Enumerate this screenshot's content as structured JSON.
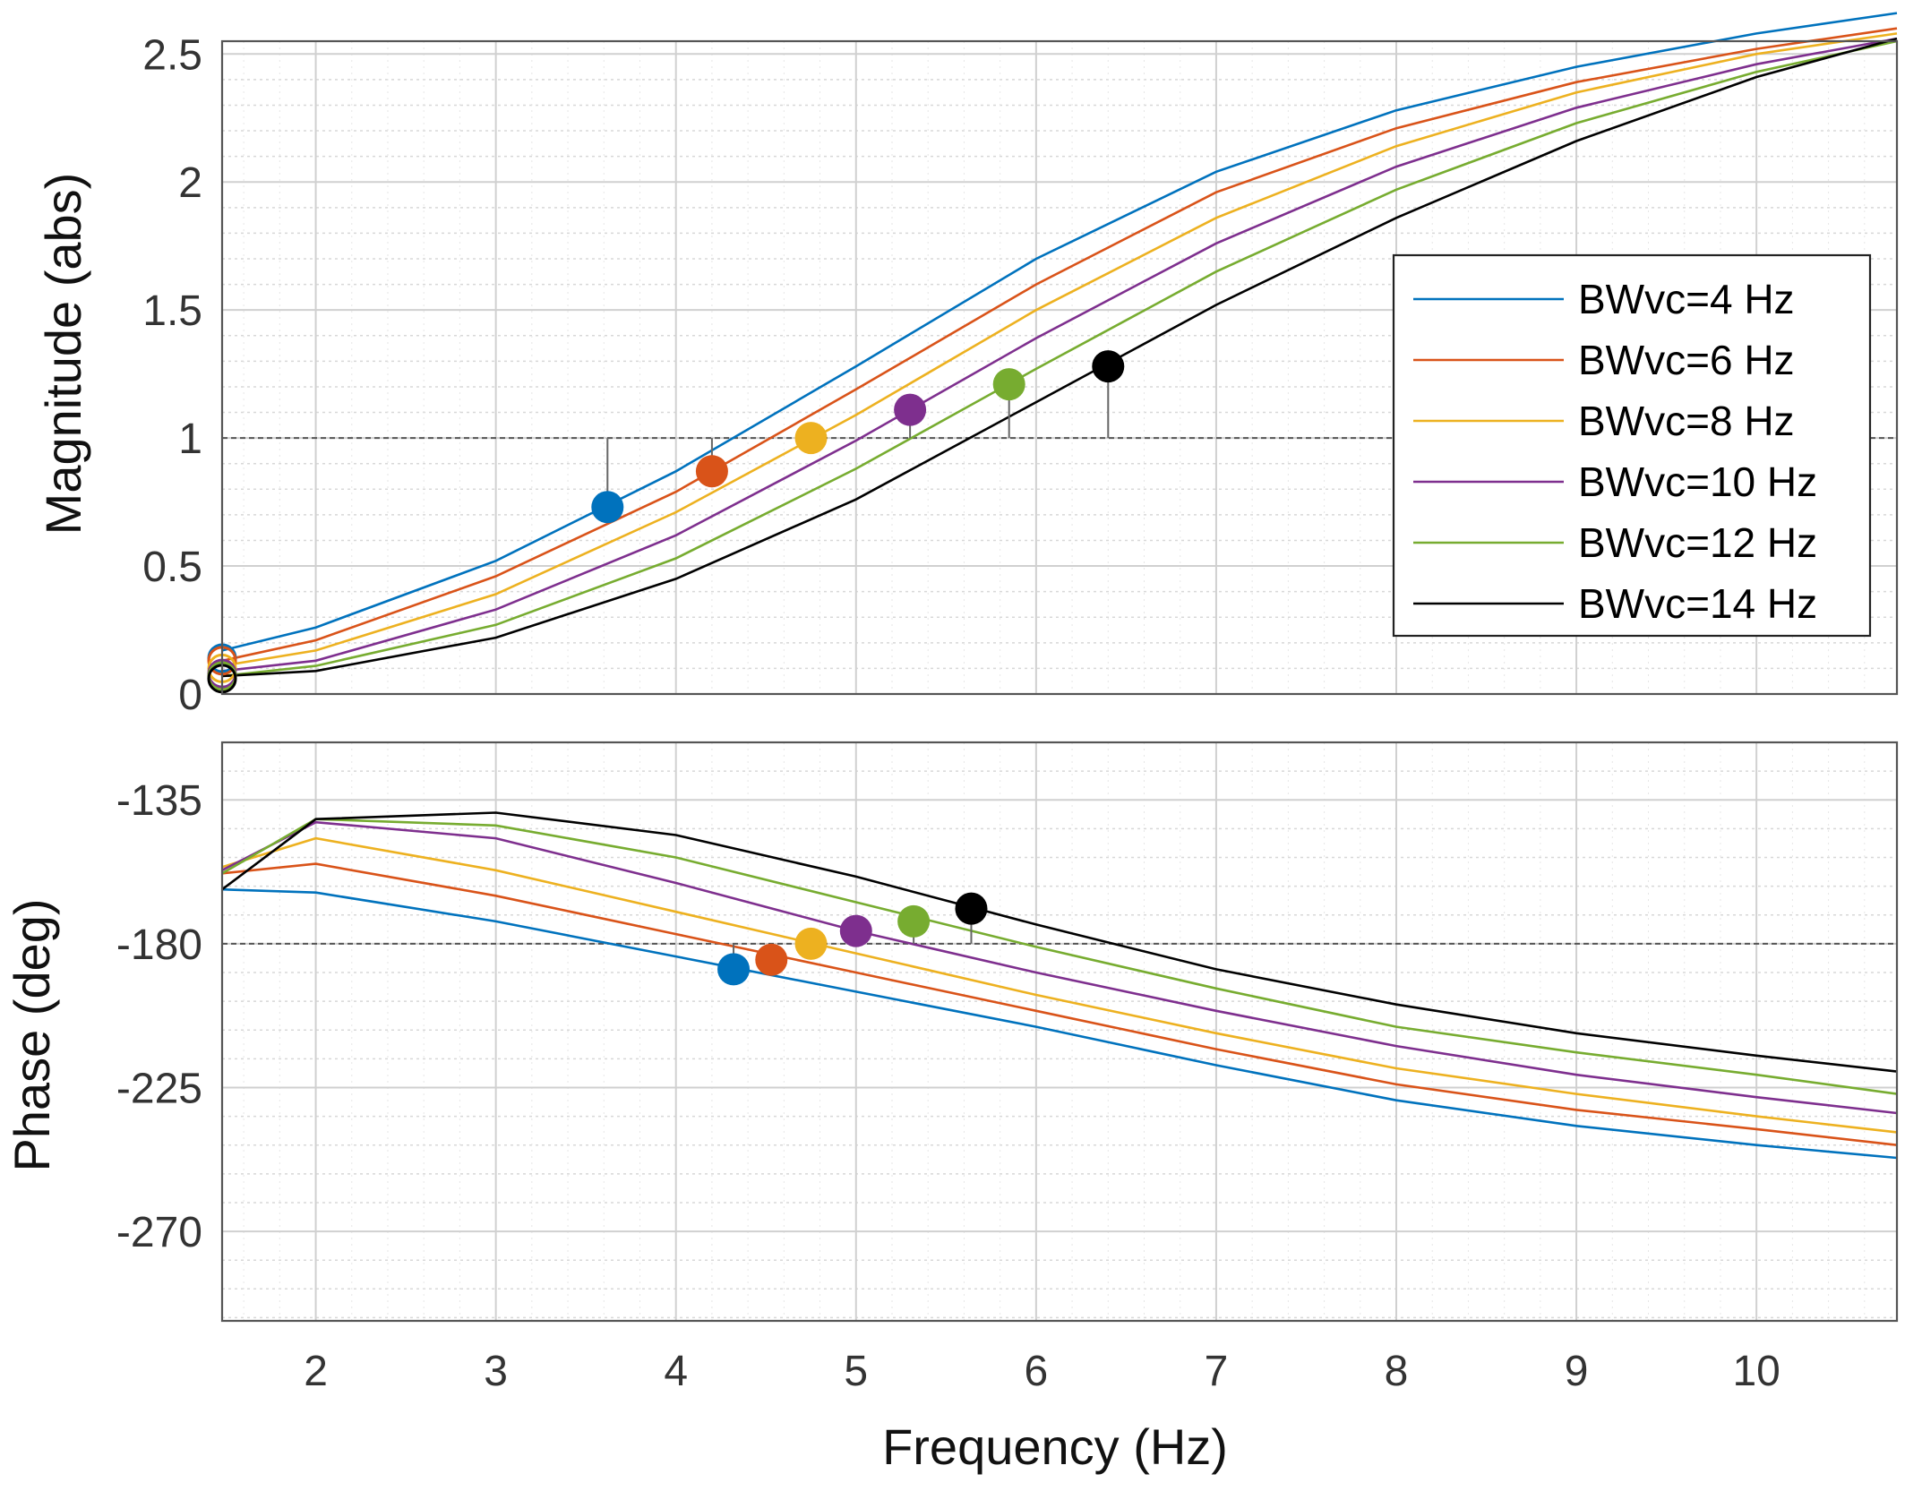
{
  "chart_data": [
    {
      "type": "line",
      "title": "",
      "xlabel": "",
      "ylabel": "Magnitude (abs)",
      "xlim": [
        1.48,
        10.78
      ],
      "ylim": [
        0,
        2.55
      ],
      "xticks": [
        2,
        3,
        4,
        5,
        6,
        7,
        8,
        9,
        10
      ],
      "yticks": [
        0,
        0.5,
        1,
        1.5,
        2,
        2.5
      ],
      "ytick_labels": [
        "0",
        "0.5",
        "1",
        "1.5",
        "2",
        "2.5"
      ],
      "grid": true,
      "reference_line": 1,
      "legend_position": "right",
      "series": [
        {
          "name": "BWvc=4  Hz",
          "color": "#0072BD",
          "x": [
            1.48,
            2,
            3,
            4,
            5,
            6,
            7,
            8,
            9,
            10,
            10.78
          ],
          "y": [
            0.17,
            0.26,
            0.52,
            0.87,
            1.28,
            1.7,
            2.04,
            2.28,
            2.45,
            2.58,
            2.66
          ],
          "marker": {
            "x": 3.62,
            "y": 0.73
          },
          "start_marker": {
            "x": 1.48,
            "y": 0.14
          }
        },
        {
          "name": "BWvc=6  Hz",
          "color": "#D95319",
          "x": [
            1.48,
            2,
            3,
            4,
            5,
            6,
            7,
            8,
            9,
            10,
            10.78
          ],
          "y": [
            0.13,
            0.21,
            0.46,
            0.79,
            1.19,
            1.6,
            1.96,
            2.21,
            2.39,
            2.52,
            2.6
          ],
          "marker": {
            "x": 4.2,
            "y": 0.87
          },
          "start_marker": {
            "x": 1.48,
            "y": 0.13
          }
        },
        {
          "name": "BWvc=8 Hz",
          "color": "#EDB120",
          "x": [
            1.48,
            2,
            3,
            4,
            5,
            6,
            7,
            8,
            9,
            10,
            10.78
          ],
          "y": [
            0.11,
            0.17,
            0.39,
            0.71,
            1.09,
            1.5,
            1.86,
            2.14,
            2.35,
            2.5,
            2.58
          ],
          "marker": {
            "x": 4.75,
            "y": 1.0
          },
          "start_marker": {
            "x": 1.48,
            "y": 0.1
          }
        },
        {
          "name": "BWvc=10 Hz",
          "color": "#7E2F8E",
          "x": [
            1.48,
            2,
            3,
            4,
            5,
            6,
            7,
            8,
            9,
            10,
            10.78
          ],
          "y": [
            0.09,
            0.13,
            0.33,
            0.62,
            0.99,
            1.39,
            1.76,
            2.06,
            2.29,
            2.46,
            2.56
          ],
          "marker": {
            "x": 5.3,
            "y": 1.11
          },
          "start_marker": {
            "x": 1.48,
            "y": 0.08
          }
        },
        {
          "name": "BWvc=12 Hz",
          "color": "#77AC30",
          "x": [
            1.48,
            2,
            3,
            4,
            5,
            6,
            7,
            8,
            9,
            10,
            10.78
          ],
          "y": [
            0.07,
            0.11,
            0.27,
            0.53,
            0.88,
            1.27,
            1.65,
            1.97,
            2.23,
            2.43,
            2.55
          ],
          "marker": {
            "x": 5.85,
            "y": 1.21
          },
          "start_marker": {
            "x": 1.48,
            "y": 0.07
          }
        },
        {
          "name": "BWvc=14 Hz",
          "color": "#000000",
          "x": [
            1.48,
            2,
            3,
            4,
            5,
            6,
            7,
            8,
            9,
            10,
            10.78
          ],
          "y": [
            0.07,
            0.09,
            0.22,
            0.45,
            0.76,
            1.14,
            1.52,
            1.86,
            2.16,
            2.41,
            2.56
          ],
          "marker": {
            "x": 6.4,
            "y": 1.28
          },
          "start_marker": {
            "x": 1.48,
            "y": 0.06
          }
        }
      ]
    },
    {
      "type": "line",
      "title": "",
      "xlabel": "Frequency  (Hz)",
      "ylabel": "Phase (deg)",
      "xlim": [
        1.48,
        10.78
      ],
      "ylim": [
        -298,
        -117
      ],
      "xticks": [
        2,
        3,
        4,
        5,
        6,
        7,
        8,
        9,
        10
      ],
      "xtick_labels": [
        "2",
        "3",
        "4",
        "5",
        "6",
        "7",
        "8",
        "9",
        "10"
      ],
      "yticks": [
        -135,
        -180,
        -225,
        -270
      ],
      "ytick_labels": [
        "-135",
        "-180",
        "-225",
        "-270"
      ],
      "grid": true,
      "reference_line": -180,
      "series": [
        {
          "name": "BWvc=4  Hz",
          "color": "#0072BD",
          "x": [
            1.48,
            2,
            3,
            4,
            5,
            6,
            7,
            8,
            9,
            10,
            10.78
          ],
          "y": [
            -163,
            -164,
            -173,
            -184,
            -195,
            -206,
            -218,
            -229,
            -237,
            -243,
            -247
          ],
          "marker": {
            "x": 4.32,
            "y": -188
          }
        },
        {
          "name": "BWvc=6  Hz",
          "color": "#D95319",
          "x": [
            1.48,
            2,
            3,
            4,
            5,
            6,
            7,
            8,
            9,
            10,
            10.78
          ],
          "y": [
            -158,
            -155,
            -165,
            -177,
            -189,
            -201,
            -213,
            -224,
            -232,
            -238,
            -243
          ],
          "marker": {
            "x": 4.53,
            "y": -185
          }
        },
        {
          "name": "BWvc=8 Hz",
          "color": "#EDB120",
          "x": [
            1.48,
            2,
            3,
            4,
            5,
            6,
            7,
            8,
            9,
            10,
            10.78
          ],
          "y": [
            -156,
            -147,
            -157,
            -170,
            -183,
            -196,
            -208,
            -219,
            -227,
            -234,
            -239
          ],
          "marker": {
            "x": 4.75,
            "y": -180
          }
        },
        {
          "name": "BWvc=10 Hz",
          "color": "#7E2F8E",
          "x": [
            1.48,
            2,
            3,
            4,
            5,
            6,
            7,
            8,
            9,
            10,
            10.78
          ],
          "y": [
            -157,
            -142,
            -147,
            -161,
            -176,
            -189,
            -201,
            -212,
            -221,
            -228,
            -233
          ],
          "marker": {
            "x": 5.0,
            "y": -176
          }
        },
        {
          "name": "BWvc=12 Hz",
          "color": "#77AC30",
          "x": [
            1.48,
            2,
            3,
            4,
            5,
            6,
            7,
            8,
            9,
            10,
            10.78
          ],
          "y": [
            -158,
            -141,
            -143,
            -153,
            -167,
            -181,
            -194,
            -206,
            -214,
            -221,
            -227
          ],
          "marker": {
            "x": 5.32,
            "y": -173
          }
        },
        {
          "name": "BWvc=14 Hz",
          "color": "#000000",
          "x": [
            1.48,
            2,
            3,
            4,
            5,
            6,
            7,
            8,
            9,
            10,
            10.78
          ],
          "y": [
            -163,
            -141,
            -139,
            -146,
            -159,
            -174,
            -188,
            -199,
            -208,
            -215,
            -220
          ],
          "marker": {
            "x": 5.64,
            "y": -169
          }
        }
      ]
    }
  ]
}
